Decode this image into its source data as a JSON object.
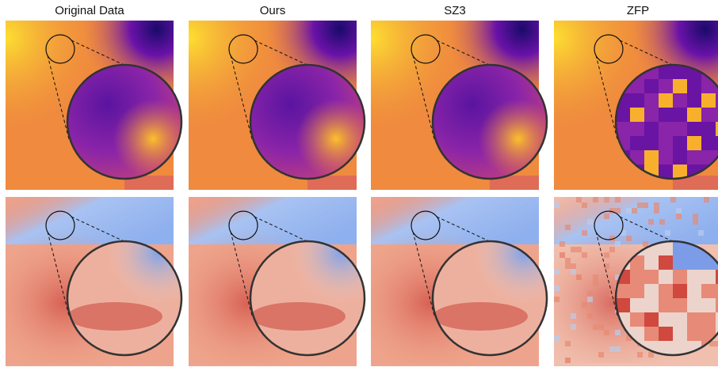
{
  "header": {
    "titles": [
      "Original Data",
      "Ours",
      "SZ3",
      "ZFP"
    ]
  }
}
